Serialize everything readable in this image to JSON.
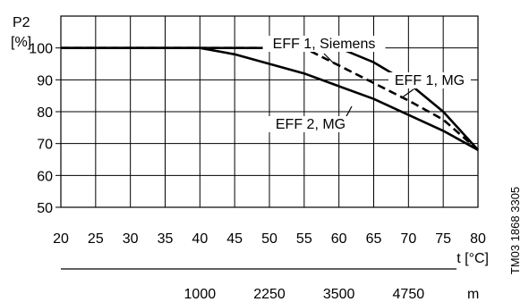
{
  "chart_data": {
    "type": "line",
    "y_axis": {
      "label_line1": "P2",
      "label_line2": "[%]",
      "ticks": [
        50,
        60,
        70,
        80,
        90,
        100
      ],
      "range": [
        50,
        110
      ]
    },
    "x_axis": {
      "label": "t [°C]",
      "ticks": [
        20,
        25,
        30,
        35,
        40,
        45,
        50,
        55,
        60,
        65,
        70,
        75,
        80
      ],
      "range": [
        20,
        80
      ]
    },
    "secondary_x_axis": {
      "unit": "m",
      "ticks": [
        {
          "label": "1000",
          "at_t": 40
        },
        {
          "label": "2250",
          "at_t": 50
        },
        {
          "label": "3500",
          "at_t": 60
        },
        {
          "label": "4750",
          "at_t": 70
        }
      ]
    },
    "grid": true,
    "series": [
      {
        "name": "EFF 1, MG",
        "style": "solid",
        "x": [
          20,
          40,
          60,
          65,
          70,
          75,
          80
        ],
        "y": [
          100,
          100,
          100,
          95.5,
          89,
          80,
          68
        ]
      },
      {
        "name": "EFF 1, Siemens",
        "style": "dashed",
        "x": [
          20,
          40,
          55,
          60,
          65,
          70,
          75,
          80
        ],
        "y": [
          100,
          100,
          100,
          94.5,
          89,
          83.5,
          77.5,
          68
        ]
      },
      {
        "name": "EFF 2, MG",
        "style": "solid",
        "x": [
          20,
          40,
          45,
          50,
          55,
          60,
          65,
          70,
          75,
          80
        ],
        "y": [
          100,
          100,
          98,
          95,
          92,
          88,
          84,
          79,
          74,
          68
        ]
      }
    ],
    "annotations": [
      {
        "text": "EFF 1, Siemens",
        "series_index": 1
      },
      {
        "text": "EFF 1, MG",
        "series_index": 0
      },
      {
        "text": "EFF 2, MG",
        "series_index": 2
      }
    ],
    "side_label": "TM03 1868 3305"
  }
}
